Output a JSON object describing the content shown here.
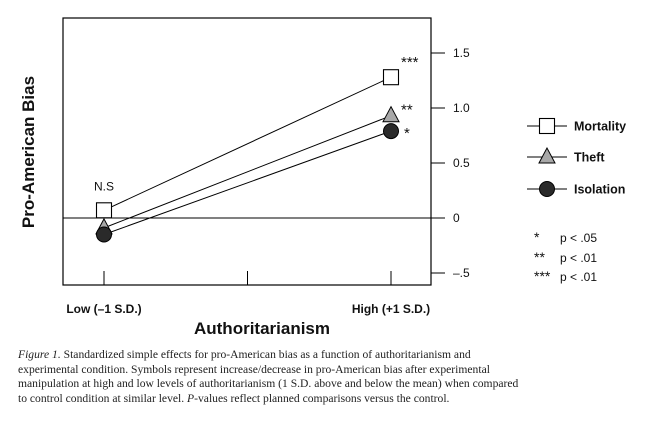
{
  "chart_data": {
    "type": "line",
    "ylabel": "Pro-American Bias",
    "xlabel": "Authoritarianism",
    "categories": [
      "Low (–1 S.D.)",
      "High (+1 S.D.)"
    ],
    "ylim": [
      -0.5,
      1.5
    ],
    "yticks": [
      1.5,
      1.0,
      0.5,
      0,
      -0.5
    ],
    "ytick_labels": [
      "1.5",
      "1.0",
      "0.5",
      "0",
      "–.5"
    ],
    "y_axis_side": "right",
    "grid": false,
    "reference_line": 0,
    "series": [
      {
        "name": "Mortality",
        "marker": "open-square",
        "values": [
          0.07,
          1.28
        ],
        "labels": [
          "N.S",
          "***"
        ]
      },
      {
        "name": "Theft",
        "marker": "gray-triangle",
        "values": [
          -0.09,
          0.93
        ],
        "labels": [
          "",
          "**"
        ]
      },
      {
        "name": "Isolation",
        "marker": "black-circle",
        "values": [
          -0.15,
          0.79
        ],
        "labels": [
          "",
          "*"
        ]
      }
    ],
    "legend_position": "right",
    "significance_legend": [
      {
        "stars": "*",
        "text": "p < .05"
      },
      {
        "stars": "**",
        "text": "p < .01"
      },
      {
        "stars": "***",
        "text": "p < .01"
      }
    ]
  },
  "caption": {
    "figure_label": "Figure 1.",
    "line1": "Standardized simple effects for pro-American bias as a function of authoritarianism and",
    "line2": "experimental condition. Symbols represent increase/decrease in pro-American bias after experimental",
    "line3": "manipulation at high and low levels of authoritarianism (1 S.D. above and below the mean) when compared",
    "line4_pre": "to control condition at similar level.",
    "line4_p": "P",
    "line4_post": "-values reflect planned comparisons versus the control."
  },
  "colors": {
    "axis": "#000000",
    "open_marker_fill": "#ffffff",
    "triangle_fill": "#a8a8a8",
    "circle_fill": "#2a2a2a"
  }
}
